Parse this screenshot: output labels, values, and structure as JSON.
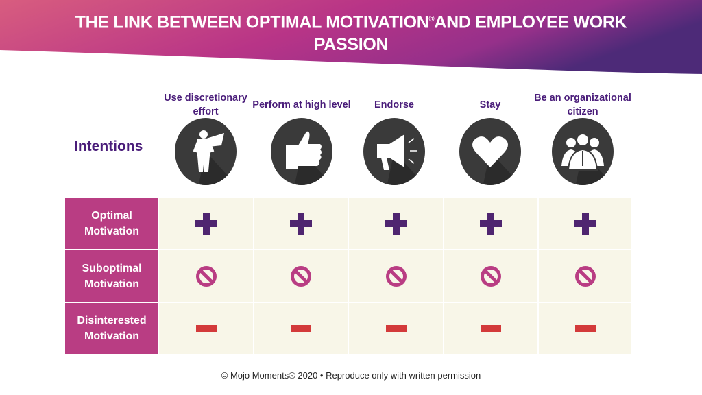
{
  "title": {
    "line_before_mark": "THE LINK BETWEEN OPTIMAL MOTIVATION",
    "mark": "®",
    "line_after_mark": "AND EMPLOYEE WORK PASSION"
  },
  "intentions_label": "Intentions",
  "columns": [
    {
      "label": "Use discretionary effort",
      "icon": "superhero-icon"
    },
    {
      "label": "Perform at high level",
      "icon": "thumbs-up-icon"
    },
    {
      "label": "Endorse",
      "icon": "megaphone-icon"
    },
    {
      "label": "Stay",
      "icon": "heart-icon"
    },
    {
      "label": "Be an organizational citizen",
      "icon": "group-icon"
    }
  ],
  "rows": [
    {
      "label": "Optimal Motivation",
      "symbol": "plus",
      "color": "#4f2570"
    },
    {
      "label": "Suboptimal Motivation",
      "symbol": "prohibited",
      "color": "#b93d83"
    },
    {
      "label": "Disinterested Motivation",
      "symbol": "minus",
      "color": "#d33a3a"
    }
  ],
  "footer": "© Mojo Moments® 2020 • Reproduce only with written permission",
  "colors": {
    "banner_start": "#d85d7f",
    "banner_mid": "#b83487",
    "banner_end": "#4d2a78",
    "row_header": "#b93d83",
    "cell_bg": "#f8f6e8",
    "heading": "#4a1d7a"
  }
}
